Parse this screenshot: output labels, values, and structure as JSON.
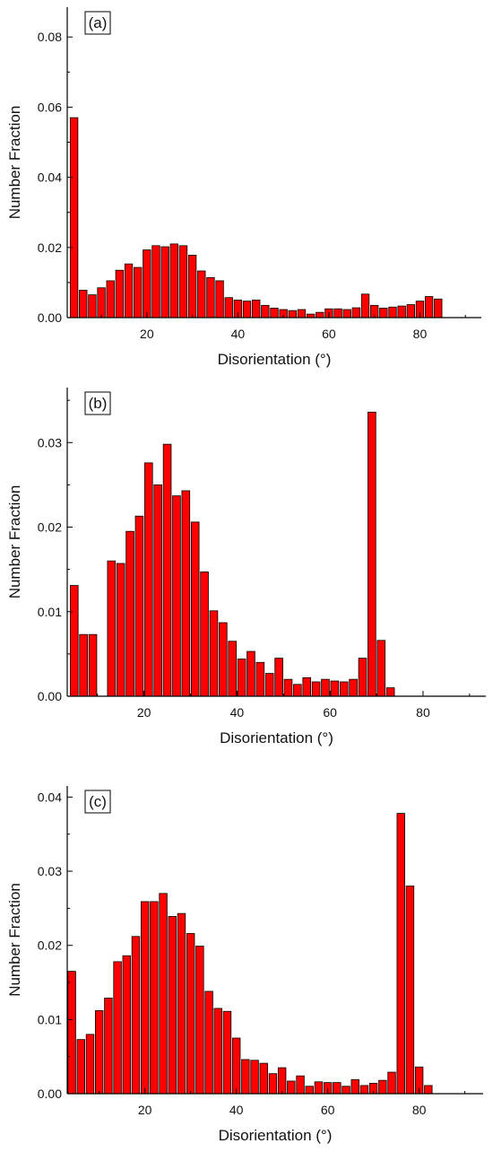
{
  "colors": {
    "bar_fill": "#ff0000",
    "bar_stroke": "#000000",
    "axis": "#000000"
  },
  "chart_data": [
    {
      "type": "bar",
      "panel_label": "(a)",
      "xlabel": "Disorientation (°)",
      "ylabel": "Number Fraction",
      "xlim": [
        2.5,
        93.5
      ],
      "ylim": [
        0,
        0.0885
      ],
      "xticks": [
        20,
        40,
        60,
        80
      ],
      "xtick_labels": [
        "20",
        "40",
        "60",
        "80"
      ],
      "yticks": [
        0,
        0.02,
        0.04,
        0.06,
        0.08
      ],
      "ytick_labels": [
        "0.00",
        "0.02",
        "0.04",
        "0.06",
        "0.08"
      ],
      "bin_width": 2,
      "x": [
        4,
        6,
        8,
        10,
        12,
        14,
        16,
        18,
        20,
        22,
        24,
        26,
        28,
        30,
        32,
        34,
        36,
        38,
        40,
        42,
        44,
        46,
        48,
        50,
        52,
        54,
        56,
        58,
        60,
        62,
        64,
        66,
        68,
        70,
        72,
        74,
        76,
        78,
        80,
        82,
        84,
        86,
        88,
        90,
        92
      ],
      "values": [
        0.057,
        0.0078,
        0.0065,
        0.0085,
        0.0105,
        0.0135,
        0.0153,
        0.0143,
        0.0193,
        0.0205,
        0.0202,
        0.021,
        0.0205,
        0.0178,
        0.0133,
        0.0114,
        0.0105,
        0.0057,
        0.005,
        0.0047,
        0.005,
        0.0035,
        0.0027,
        0.0023,
        0.002,
        0.0023,
        0.001,
        0.0015,
        0.0025,
        0.0025,
        0.0023,
        0.0028,
        0.0067,
        0.0035,
        0.0027,
        0.003,
        0.0033,
        0.0037,
        0.0047,
        0.006,
        0.0053,
        0,
        0,
        0,
        0
      ]
    },
    {
      "type": "bar",
      "panel_label": "(b)",
      "xlabel": "Disorientation (°)",
      "ylabel": "Number Fraction",
      "xlim": [
        3.5,
        93.5
      ],
      "ylim": [
        0,
        0.0365
      ],
      "xticks": [
        20,
        40,
        60,
        80
      ],
      "xtick_labels": [
        "20",
        "40",
        "60",
        "80"
      ],
      "yticks": [
        0,
        0.01,
        0.02,
        0.03
      ],
      "ytick_labels": [
        "0.00",
        "0.01",
        "0.02",
        "0.03"
      ],
      "bin_width": 2,
      "x": [
        5,
        7,
        9,
        11,
        13,
        15,
        17,
        19,
        21,
        23,
        25,
        27,
        29,
        31,
        33,
        35,
        37,
        39,
        41,
        43,
        45,
        47,
        49,
        51,
        53,
        55,
        57,
        59,
        61,
        63,
        65,
        67,
        69,
        71,
        73,
        75,
        77,
        79,
        81,
        83,
        85,
        87,
        89,
        91,
        93
      ],
      "values": [
        0.0131,
        0.0073,
        0.0073,
        0,
        0.016,
        0.0157,
        0.0195,
        0.0213,
        0.0276,
        0.025,
        0.0298,
        0.0237,
        0.0243,
        0.0206,
        0.0147,
        0.0101,
        0.0087,
        0.0065,
        0.0044,
        0.0053,
        0.004,
        0.0027,
        0.0045,
        0.002,
        0.0014,
        0.0022,
        0.0017,
        0.002,
        0.0018,
        0.0017,
        0.002,
        0.0045,
        0.0336,
        0.0066,
        0.001,
        0,
        0,
        0,
        0,
        0,
        0,
        0,
        0,
        0,
        0
      ]
    },
    {
      "type": "bar",
      "panel_label": "(c)",
      "xlabel": "Disorientation (°)",
      "ylabel": "Number Fraction",
      "xlim": [
        3,
        94
      ],
      "ylim": [
        0,
        0.0415
      ],
      "xticks": [
        20,
        40,
        60,
        80
      ],
      "xtick_labels": [
        "20",
        "40",
        "60",
        "80"
      ],
      "yticks": [
        0,
        0.01,
        0.02,
        0.03,
        0.04
      ],
      "ytick_labels": [
        "0.00",
        "0.01",
        "0.02",
        "0.03",
        "0.04"
      ],
      "bin_width": 2,
      "x": [
        4,
        6,
        8,
        10,
        12,
        14,
        16,
        18,
        20,
        22,
        24,
        26,
        28,
        30,
        32,
        34,
        36,
        38,
        40,
        42,
        44,
        46,
        48,
        50,
        52,
        54,
        56,
        58,
        60,
        62,
        64,
        66,
        68,
        70,
        72,
        74,
        76,
        78,
        80,
        82,
        84,
        86,
        88,
        90,
        92
      ],
      "values": [
        0.0165,
        0.0073,
        0.008,
        0.0112,
        0.0129,
        0.0178,
        0.0186,
        0.0212,
        0.0259,
        0.0259,
        0.027,
        0.0239,
        0.0243,
        0.0216,
        0.0199,
        0.0138,
        0.0115,
        0.0111,
        0.0075,
        0.0046,
        0.0045,
        0.0041,
        0.0027,
        0.0035,
        0.0017,
        0.0024,
        0.001,
        0.0016,
        0.0015,
        0.0015,
        0.001,
        0.0019,
        0.0011,
        0.0014,
        0.0018,
        0.0029,
        0.0378,
        0.028,
        0.0036,
        0.0011,
        0,
        0,
        0,
        0,
        0
      ]
    }
  ]
}
